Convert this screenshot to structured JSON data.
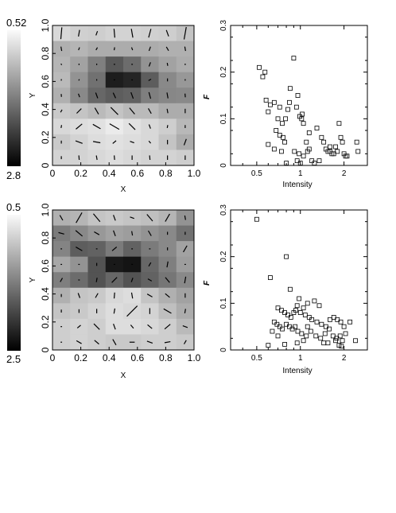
{
  "chart_data": [
    {
      "type": "heatmap",
      "xlabel": "X",
      "ylabel": "Y",
      "xlim": [
        0,
        1
      ],
      "ylim": [
        0,
        1
      ],
      "xticks": [
        "0",
        "0.2",
        "0.4",
        "0.6",
        "0.8",
        "1.0"
      ],
      "yticks": [
        "0",
        "0.2",
        "0.4",
        "0.6",
        "0.8",
        "1.0"
      ],
      "colorbar": {
        "max_label": "0.52",
        "min_label": "2.8"
      },
      "grid_values": [
        [
          0.88,
          0.85,
          0.84,
          0.86,
          0.86,
          0.85,
          0.84,
          0.8
        ],
        [
          0.72,
          0.74,
          0.7,
          0.7,
          0.7,
          0.7,
          0.72,
          0.72
        ],
        [
          0.74,
          0.66,
          0.52,
          0.36,
          0.44,
          0.6,
          0.66,
          0.7
        ],
        [
          0.76,
          0.6,
          0.46,
          0.12,
          0.15,
          0.38,
          0.56,
          0.62
        ],
        [
          0.72,
          0.56,
          0.42,
          0.38,
          0.4,
          0.52,
          0.55,
          0.56
        ],
        [
          0.82,
          0.8,
          0.76,
          0.8,
          0.76,
          0.76,
          0.7,
          0.7
        ],
        [
          0.88,
          0.9,
          0.92,
          0.96,
          0.92,
          0.88,
          0.84,
          0.75
        ],
        [
          0.82,
          0.86,
          0.9,
          0.92,
          0.9,
          0.88,
          0.8,
          0.7
        ],
        [
          0.86,
          0.86,
          0.88,
          0.9,
          0.88,
          0.86,
          0.86,
          0.84
        ]
      ],
      "vectors": [
        [
          [
            85,
            0.8
          ],
          [
            80,
            0.45
          ],
          [
            70,
            0.3
          ],
          [
            95,
            0.6
          ],
          [
            100,
            0.6
          ],
          [
            75,
            0.6
          ],
          [
            110,
            0.45
          ],
          [
            80,
            0.85
          ]
        ],
        [
          [
            100,
            0.3
          ],
          [
            70,
            0.2
          ],
          [
            60,
            0.2
          ],
          [
            80,
            0.2
          ],
          [
            110,
            0.2
          ],
          [
            70,
            0.3
          ],
          [
            120,
            0.3
          ],
          [
            100,
            0.3
          ]
        ],
        [
          [
            120,
            0.1
          ],
          [
            90,
            0.1
          ],
          [
            90,
            0.1
          ],
          [
            0,
            0.1
          ],
          [
            0,
            0.1
          ],
          [
            70,
            0.3
          ],
          [
            100,
            0.2
          ],
          [
            90,
            0.1
          ]
        ],
        [
          [
            80,
            0.1
          ],
          [
            60,
            0.1
          ],
          [
            90,
            0.1
          ],
          [
            0,
            0.1
          ],
          [
            0,
            0.1
          ],
          [
            30,
            0.2
          ],
          [
            90,
            0.2
          ],
          [
            90,
            0.1
          ]
        ],
        [
          [
            95,
            0.2
          ],
          [
            110,
            0.25
          ],
          [
            110,
            0.4
          ],
          [
            115,
            0.4
          ],
          [
            110,
            0.45
          ],
          [
            105,
            0.45
          ],
          [
            100,
            0.4
          ],
          [
            95,
            0.25
          ]
        ],
        [
          [
            60,
            0.2
          ],
          [
            45,
            0.45
          ],
          [
            120,
            0.5
          ],
          [
            135,
            0.7
          ],
          [
            130,
            0.55
          ],
          [
            120,
            0.4
          ],
          [
            100,
            0.3
          ],
          [
            90,
            0.3
          ]
        ],
        [
          [
            80,
            0.2
          ],
          [
            40,
            0.55
          ],
          [
            150,
            0.6
          ],
          [
            150,
            0.75
          ],
          [
            135,
            0.6
          ],
          [
            110,
            0.3
          ],
          [
            80,
            0.2
          ],
          [
            90,
            0.2
          ]
        ],
        [
          [
            90,
            0.2
          ],
          [
            160,
            0.5
          ],
          [
            170,
            0.5
          ],
          [
            40,
            0.3
          ],
          [
            160,
            0.3
          ],
          [
            130,
            0.2
          ],
          [
            90,
            0.3
          ],
          [
            70,
            0.45
          ]
        ],
        [
          [
            90,
            0.2
          ],
          [
            95,
            0.3
          ],
          [
            100,
            0.3
          ],
          [
            95,
            0.3
          ],
          [
            90,
            0.3
          ],
          [
            95,
            0.3
          ],
          [
            90,
            0.3
          ],
          [
            90,
            0.3
          ]
        ]
      ]
    },
    {
      "type": "scatter",
      "xlabel": "Intensity",
      "ylabel": "F",
      "xscale": "log",
      "xlim": [
        0.33,
        2.9
      ],
      "ylim": [
        0,
        0.3
      ],
      "xticks": [
        "0.5",
        "1",
        "2"
      ],
      "yticks": [
        "0",
        "0.1",
        "0.2",
        "0.3"
      ],
      "points": [
        [
          0.52,
          0.21
        ],
        [
          0.55,
          0.19
        ],
        [
          0.57,
          0.2
        ],
        [
          0.9,
          0.23
        ],
        [
          0.85,
          0.165
        ],
        [
          0.82,
          0.12
        ],
        [
          0.96,
          0.15
        ],
        [
          0.58,
          0.14
        ],
        [
          0.62,
          0.13
        ],
        [
          0.66,
          0.135
        ],
        [
          0.72,
          0.125
        ],
        [
          0.84,
          0.135
        ],
        [
          0.94,
          0.125
        ],
        [
          0.6,
          0.115
        ],
        [
          0.7,
          0.1
        ],
        [
          0.75,
          0.09
        ],
        [
          0.79,
          0.1
        ],
        [
          0.99,
          0.105
        ],
        [
          1.02,
          0.1
        ],
        [
          1.05,
          0.09
        ],
        [
          0.68,
          0.075
        ],
        [
          0.72,
          0.065
        ],
        [
          0.76,
          0.06
        ],
        [
          0.78,
          0.05
        ],
        [
          0.6,
          0.045
        ],
        [
          0.66,
          0.035
        ],
        [
          0.74,
          0.03
        ],
        [
          0.91,
          0.03
        ],
        [
          0.98,
          0.025
        ],
        [
          1.05,
          0.02
        ],
        [
          1.1,
          0.05
        ],
        [
          1.12,
          0.03
        ],
        [
          1.15,
          0.035
        ],
        [
          1.3,
          0.08
        ],
        [
          1.4,
          0.06
        ],
        [
          1.45,
          0.05
        ],
        [
          1.5,
          0.035
        ],
        [
          1.55,
          0.03
        ],
        [
          1.6,
          0.03
        ],
        [
          1.65,
          0.025
        ],
        [
          1.7,
          0.025
        ],
        [
          1.75,
          0.04
        ],
        [
          1.8,
          0.03
        ],
        [
          1.85,
          0.09
        ],
        [
          1.9,
          0.06
        ],
        [
          1.95,
          0.05
        ],
        [
          2.0,
          0.025
        ],
        [
          2.05,
          0.02
        ],
        [
          2.1,
          0.02
        ],
        [
          1.35,
          0.01
        ],
        [
          0.8,
          0.005
        ],
        [
          1.0,
          0.005
        ],
        [
          0.95,
          0.01
        ],
        [
          1.2,
          0.01
        ],
        [
          1.25,
          0.005
        ],
        [
          2.45,
          0.05
        ],
        [
          2.5,
          0.03
        ],
        [
          1.15,
          0.07
        ],
        [
          1.03,
          0.11
        ],
        [
          1.6,
          0.04
        ]
      ]
    },
    {
      "type": "heatmap",
      "xlabel": "X",
      "ylabel": "Y",
      "xlim": [
        0,
        1
      ],
      "ylim": [
        0,
        1
      ],
      "xticks": [
        "0",
        "0.2",
        "0.4",
        "0.6",
        "0.8",
        "1.0"
      ],
      "yticks": [
        "0",
        "0.2",
        "0.4",
        "0.6",
        "0.8",
        "1.0"
      ],
      "colorbar": {
        "max_label": "0.5",
        "min_label": "2.5"
      },
      "grid_values": [
        [
          0.72,
          0.74,
          0.8,
          0.82,
          0.8,
          0.78,
          0.74,
          0.6
        ],
        [
          0.5,
          0.56,
          0.62,
          0.66,
          0.64,
          0.6,
          0.56,
          0.46
        ],
        [
          0.54,
          0.38,
          0.4,
          0.5,
          0.4,
          0.5,
          0.56,
          0.66
        ],
        [
          0.68,
          0.6,
          0.34,
          0.1,
          0.08,
          0.42,
          0.52,
          0.64
        ],
        [
          0.52,
          0.44,
          0.34,
          0.42,
          0.34,
          0.4,
          0.48,
          0.56
        ],
        [
          0.72,
          0.8,
          0.82,
          0.88,
          0.9,
          0.8,
          0.72,
          0.66
        ],
        [
          0.8,
          0.82,
          0.86,
          0.9,
          0.88,
          0.86,
          0.78,
          0.7
        ],
        [
          0.84,
          0.86,
          0.84,
          0.9,
          0.9,
          0.88,
          0.84,
          0.76
        ],
        [
          0.84,
          0.86,
          0.84,
          0.82,
          0.82,
          0.84,
          0.84,
          0.82
        ]
      ],
      "vectors": [
        [
          [
            120,
            0.4
          ],
          [
            60,
            0.8
          ],
          [
            130,
            0.7
          ],
          [
            110,
            0.4
          ],
          [
            160,
            0.3
          ],
          [
            130,
            0.6
          ],
          [
            60,
            0.6
          ],
          [
            100,
            0.3
          ]
        ],
        [
          [
            165,
            0.4
          ],
          [
            140,
            0.6
          ],
          [
            150,
            0.4
          ],
          [
            110,
            0.4
          ],
          [
            100,
            0.3
          ],
          [
            120,
            0.4
          ],
          [
            90,
            0.2
          ],
          [
            90,
            0.2
          ]
        ],
        [
          [
            0,
            0.1
          ],
          [
            150,
            0.5
          ],
          [
            0,
            0.1
          ],
          [
            40,
            0.4
          ],
          [
            0,
            0.1
          ],
          [
            0,
            0.1
          ],
          [
            90,
            0.2
          ],
          [
            60,
            0.5
          ]
        ],
        [
          [
            0,
            0.1
          ],
          [
            0,
            0.1
          ],
          [
            90,
            0.2
          ],
          [
            0,
            0.1
          ],
          [
            0,
            0.1
          ],
          [
            60,
            0.3
          ],
          [
            80,
            0.4
          ],
          [
            0,
            0.1
          ]
        ],
        [
          [
            60,
            0.3
          ],
          [
            0,
            0.1
          ],
          [
            80,
            0.3
          ],
          [
            45,
            0.5
          ],
          [
            70,
            0.3
          ],
          [
            150,
            0.3
          ],
          [
            130,
            0.45
          ],
          [
            80,
            0.45
          ]
        ],
        [
          [
            90,
            0.2
          ],
          [
            110,
            0.35
          ],
          [
            60,
            0.35
          ],
          [
            85,
            0.4
          ],
          [
            100,
            0.4
          ],
          [
            150,
            0.4
          ],
          [
            140,
            0.4
          ],
          [
            90,
            0.3
          ]
        ],
        [
          [
            90,
            0.2
          ],
          [
            90,
            0.25
          ],
          [
            90,
            0.3
          ],
          [
            80,
            0.35
          ],
          [
            45,
            1.0
          ],
          [
            90,
            0.4
          ],
          [
            150,
            0.6
          ],
          [
            80,
            0.3
          ]
        ],
        [
          [
            0,
            0.1
          ],
          [
            40,
            0.3
          ],
          [
            135,
            0.55
          ],
          [
            110,
            0.4
          ],
          [
            130,
            0.3
          ],
          [
            140,
            0.4
          ],
          [
            40,
            0.5
          ],
          [
            160,
            0.35
          ]
        ],
        [
          [
            0,
            0.1
          ],
          [
            150,
            0.4
          ],
          [
            140,
            0.4
          ],
          [
            120,
            0.45
          ],
          [
            0,
            0.35
          ],
          [
            160,
            0.4
          ],
          [
            10,
            0.4
          ],
          [
            60,
            0.3
          ]
        ]
      ]
    },
    {
      "type": "scatter",
      "xlabel": "Intensity",
      "ylabel": "F",
      "xscale": "log",
      "xlim": [
        0.33,
        2.9
      ],
      "ylim": [
        0,
        0.3
      ],
      "xticks": [
        "0.5",
        "1",
        "2"
      ],
      "yticks": [
        "0",
        "0.1",
        "0.2",
        "0.3"
      ],
      "points": [
        [
          0.5,
          0.28
        ],
        [
          0.8,
          0.2
        ],
        [
          0.62,
          0.155
        ],
        [
          0.85,
          0.13
        ],
        [
          0.98,
          0.11
        ],
        [
          1.12,
          0.1
        ],
        [
          1.25,
          0.105
        ],
        [
          0.95,
          0.095
        ],
        [
          1.05,
          0.09
        ],
        [
          1.35,
          0.095
        ],
        [
          0.7,
          0.09
        ],
        [
          0.74,
          0.085
        ],
        [
          0.78,
          0.08
        ],
        [
          0.82,
          0.075
        ],
        [
          0.86,
          0.07
        ],
        [
          0.9,
          0.08
        ],
        [
          0.93,
          0.085
        ],
        [
          1.0,
          0.08
        ],
        [
          1.08,
          0.075
        ],
        [
          1.15,
          0.07
        ],
        [
          1.2,
          0.065
        ],
        [
          1.3,
          0.06
        ],
        [
          1.4,
          0.055
        ],
        [
          1.5,
          0.05
        ],
        [
          1.6,
          0.065
        ],
        [
          1.7,
          0.07
        ],
        [
          1.8,
          0.065
        ],
        [
          1.9,
          0.06
        ],
        [
          2.0,
          0.05
        ],
        [
          2.2,
          0.06
        ],
        [
          0.66,
          0.06
        ],
        [
          0.69,
          0.055
        ],
        [
          0.72,
          0.05
        ],
        [
          0.75,
          0.045
        ],
        [
          0.8,
          0.055
        ],
        [
          0.84,
          0.05
        ],
        [
          0.88,
          0.045
        ],
        [
          0.92,
          0.05
        ],
        [
          0.96,
          0.04
        ],
        [
          1.02,
          0.035
        ],
        [
          1.1,
          0.03
        ],
        [
          1.18,
          0.04
        ],
        [
          1.28,
          0.03
        ],
        [
          1.38,
          0.025
        ],
        [
          1.48,
          0.035
        ],
        [
          1.58,
          0.045
        ],
        [
          1.68,
          0.03
        ],
        [
          1.78,
          0.025
        ],
        [
          1.88,
          0.03
        ],
        [
          1.95,
          0.02
        ],
        [
          2.05,
          0.035
        ],
        [
          0.6,
          0.01
        ],
        [
          0.78,
          0.012
        ],
        [
          0.95,
          0.015
        ],
        [
          1.05,
          0.02
        ],
        [
          1.45,
          0.015
        ],
        [
          1.85,
          0.01
        ],
        [
          2.4,
          0.02
        ],
        [
          0.64,
          0.04
        ],
        [
          1.12,
          0.05
        ],
        [
          1.55,
          0.015
        ],
        [
          1.75,
          0.02
        ],
        [
          1.92,
          0.008
        ],
        [
          0.7,
          0.03
        ]
      ]
    }
  ]
}
